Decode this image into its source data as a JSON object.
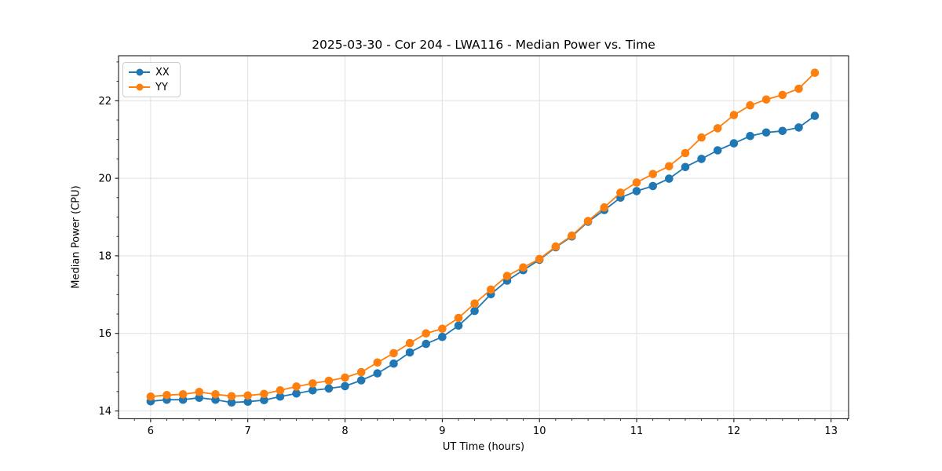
{
  "figure": {
    "title": "2025-03-30 - Cor 204 - LWA116 - Median Power vs. Time"
  },
  "chart_data": {
    "type": "line",
    "title": "2025-03-30 - Cor 204 - LWA116 - Median Power vs. Time",
    "xlabel": "UT Time (hours)",
    "ylabel": "Median Power (CPU)",
    "xlim": [
      5.67,
      13.18
    ],
    "ylim": [
      13.8,
      23.16
    ],
    "xticks": [
      6,
      7,
      8,
      9,
      10,
      11,
      12,
      13
    ],
    "yticks": [
      14,
      16,
      18,
      20,
      22
    ],
    "x_minor_step": 0.1666667,
    "y_minor_step": 0.5,
    "grid": true,
    "grid_color": "#e0e0e0",
    "legend_position": "upper-left",
    "marker": "circle",
    "x": [
      6.0,
      6.167,
      6.333,
      6.5,
      6.667,
      6.833,
      7.0,
      7.167,
      7.333,
      7.5,
      7.667,
      7.833,
      8.0,
      8.167,
      8.333,
      8.5,
      8.667,
      8.833,
      9.0,
      9.167,
      9.333,
      9.5,
      9.667,
      9.833,
      10.0,
      10.167,
      10.333,
      10.5,
      10.667,
      10.833,
      11.0,
      11.167,
      11.333,
      11.5,
      11.667,
      11.833,
      12.0,
      12.167,
      12.333,
      12.5,
      12.667,
      12.833
    ],
    "series": [
      {
        "name": "XX",
        "color": "#1f77b4",
        "values": [
          14.25,
          14.29,
          14.29,
          14.34,
          14.29,
          14.22,
          14.24,
          14.28,
          14.37,
          14.45,
          14.53,
          14.58,
          14.64,
          14.79,
          14.97,
          15.22,
          15.51,
          15.73,
          15.91,
          16.2,
          16.58,
          17.01,
          17.36,
          17.63,
          17.9,
          18.22,
          18.5,
          18.88,
          19.18,
          19.5,
          19.67,
          19.8,
          19.99,
          20.29,
          20.5,
          20.72,
          20.9,
          21.09,
          21.18,
          21.22,
          21.31,
          21.61
        ]
      },
      {
        "name": "YY",
        "color": "#ff7f0e",
        "values": [
          14.37,
          14.41,
          14.43,
          14.49,
          14.43,
          14.38,
          14.4,
          14.44,
          14.53,
          14.63,
          14.71,
          14.78,
          14.86,
          15.0,
          15.25,
          15.49,
          15.75,
          16.0,
          16.12,
          16.4,
          16.77,
          17.13,
          17.48,
          17.7,
          17.92,
          18.24,
          18.52,
          18.9,
          19.25,
          19.63,
          19.89,
          20.11,
          20.31,
          20.65,
          21.05,
          21.29,
          21.63,
          21.88,
          22.03,
          22.15,
          22.31,
          22.72
        ]
      }
    ]
  }
}
